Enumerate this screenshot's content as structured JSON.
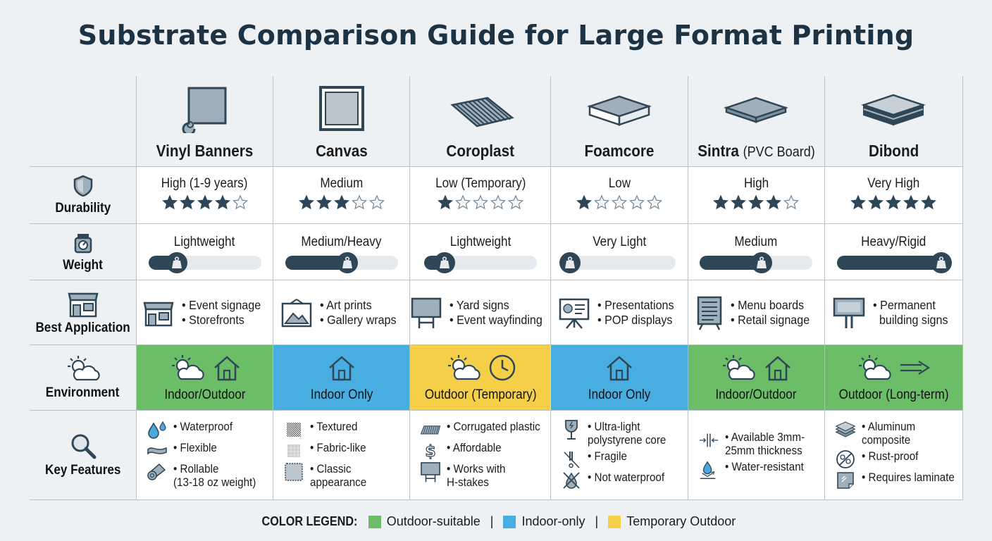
{
  "title": "Substrate Comparison Guide for Large Format Printing",
  "colors": {
    "outdoor": "#6cbd68",
    "indoor": "#48aee2",
    "temporary": "#f6cf48",
    "dark": "#2e4656"
  },
  "row_labels": [
    {
      "label": "Durability",
      "icon": "shield-icon"
    },
    {
      "label": "Weight",
      "icon": "scale-icon"
    },
    {
      "label": "Best Application",
      "icon": "storefront-icon"
    },
    {
      "label": "Environment",
      "icon": "sun-cloud-icon"
    },
    {
      "label": "Key Features",
      "icon": "magnifier-icon"
    }
  ],
  "substrates": [
    {
      "name": "Vinyl Banners",
      "name_sub": "",
      "icon": "vinyl-roll-icon",
      "durability": "High (1-9 years)",
      "stars": 4,
      "weight": "Lightweight",
      "weight_level": 0.25,
      "app_icon": "storefront-icon",
      "applications": [
        "• Event signage",
        "• Storefronts"
      ],
      "environment": "Indoor/Outdoor",
      "env_type": "outdoor",
      "env_icons": [
        "sun-cloud-icon",
        "house-icon"
      ],
      "features": [
        {
          "icon": "water-drops-icon",
          "text": "• Waterproof"
        },
        {
          "icon": "wave-icon",
          "text": "• Flexible"
        },
        {
          "icon": "roll-icon",
          "text": "• Rollable\n(13-18 oz weight)"
        }
      ]
    },
    {
      "name": "Canvas",
      "name_sub": "",
      "icon": "canvas-frame-icon",
      "durability": "Medium",
      "stars": 3,
      "weight": "Medium/Heavy",
      "weight_level": 0.55,
      "app_icon": "picture-icon",
      "applications": [
        "• Art prints",
        "• Gallery wraps"
      ],
      "environment": "Indoor Only",
      "env_type": "indoor",
      "env_icons": [
        "house-icon"
      ],
      "features": [
        {
          "icon": "texture-icon",
          "text": "• Textured"
        },
        {
          "icon": "fabric-icon",
          "text": "• Fabric-like"
        },
        {
          "icon": "stamp-edge-icon",
          "text": "• Classic\nappearance"
        }
      ]
    },
    {
      "name": "Coroplast",
      "name_sub": "",
      "icon": "corrugated-sheet-icon",
      "durability": "Low (Temporary)",
      "stars": 1,
      "weight": "Lightweight",
      "weight_level": 0.18,
      "app_icon": "yard-sign-icon",
      "applications": [
        "• Yard signs",
        "• Event wayfinding"
      ],
      "environment": "Outdoor (Temporary)",
      "env_type": "temporary",
      "env_icons": [
        "sun-cloud-icon",
        "clock-icon"
      ],
      "features": [
        {
          "icon": "corrugated-icon",
          "text": "• Corrugated plastic"
        },
        {
          "icon": "dollar-icon",
          "text": "• Affordable"
        },
        {
          "icon": "yard-sign-icon",
          "text": "• Works with\nH-stakes"
        }
      ]
    },
    {
      "name": "Foamcore",
      "name_sub": "",
      "icon": "foam-board-icon",
      "durability": "Low",
      "stars": 1,
      "weight": "Very Light",
      "weight_level": 0.04,
      "app_icon": "presentation-easel-icon",
      "applications": [
        "• Presentations",
        "• POP displays"
      ],
      "environment": "Indoor Only",
      "env_type": "indoor",
      "env_icons": [
        "house-icon"
      ],
      "features": [
        {
          "icon": "fragile-glass-icon",
          "text": "• Ultra-light\npolystyrene core"
        },
        {
          "icon": "fragile-icon",
          "text": "• Fragile"
        },
        {
          "icon": "no-water-icon",
          "text": "• Not waterproof"
        }
      ]
    },
    {
      "name": "Sintra",
      "name_sub": "(PVC Board)",
      "icon": "pvc-board-icon",
      "durability": "High",
      "stars": 4,
      "weight": "Medium",
      "weight_level": 0.55,
      "app_icon": "menu-board-icon",
      "applications": [
        "• Menu boards",
        "• Retail signage"
      ],
      "environment": "Indoor/Outdoor",
      "env_type": "outdoor",
      "env_icons": [
        "sun-cloud-icon",
        "house-icon"
      ],
      "features": [
        {
          "icon": "thickness-icon",
          "text": "• Available 3mm-\n25mm thickness"
        },
        {
          "icon": "water-resist-icon",
          "text": "• Water-resistant"
        }
      ]
    },
    {
      "name": "Dibond",
      "name_sub": "",
      "icon": "aluminum-panel-icon",
      "durability": "Very High",
      "stars": 5,
      "weight": "Heavy/Rigid",
      "weight_level": 0.92,
      "app_icon": "billboard-icon",
      "applications": [
        "• Permanent\n  building signs"
      ],
      "environment": "Outdoor (Long-term)",
      "env_type": "outdoor",
      "env_icons": [
        "sun-cloud-icon",
        "arrow-right-icon"
      ],
      "features": [
        {
          "icon": "layers-icon",
          "text": "• Aluminum\ncomposite"
        },
        {
          "icon": "no-rust-icon",
          "text": "• Rust-proof"
        },
        {
          "icon": "laminate-icon",
          "text": "• Requires laminate"
        }
      ]
    }
  ],
  "legend": {
    "title": "COLOR LEGEND:",
    "items": [
      {
        "label": "Outdoor-suitable",
        "type": "outdoor"
      },
      {
        "label": "Indoor-only",
        "type": "indoor"
      },
      {
        "label": "Temporary Outdoor",
        "type": "temporary"
      }
    ]
  }
}
